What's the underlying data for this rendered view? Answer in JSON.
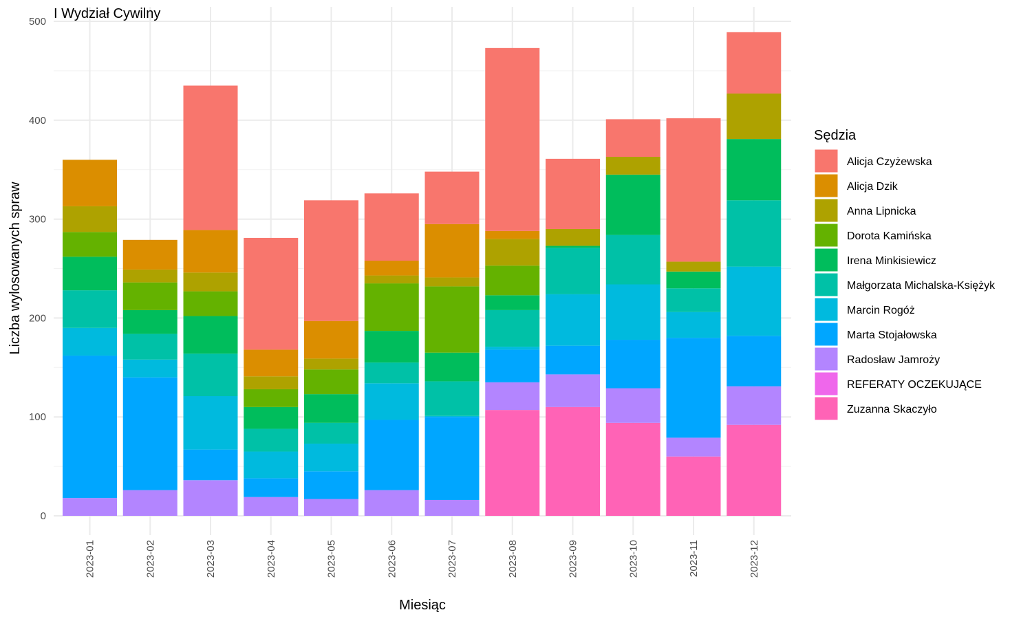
{
  "chart_data": {
    "type": "bar",
    "stacked": true,
    "title": "I Wydział Cywilny",
    "xlabel": "Miesiąc",
    "ylabel": "Liczba wylosowanych spraw",
    "ylim": [
      0,
      500
    ],
    "y_ticks": [
      0,
      100,
      200,
      300,
      400,
      500
    ],
    "grid": true,
    "legend_title": "Sędzia",
    "legend_position": "right",
    "categories": [
      "2023-01",
      "2023-02",
      "2023-03",
      "2023-04",
      "2023-05",
      "2023-06",
      "2023-07",
      "2023-08",
      "2023-09",
      "2023-10",
      "2023-11",
      "2023-12"
    ],
    "series": [
      {
        "name": "Alicja Czyżewska",
        "color": "#F8766D",
        "values": [
          0,
          0,
          146,
          113,
          122,
          68,
          53,
          185,
          71,
          38,
          145,
          62
        ]
      },
      {
        "name": "Alicja Dzik",
        "color": "#DB8E00",
        "values": [
          47,
          30,
          43,
          27,
          38,
          15,
          54,
          8,
          0,
          0,
          0,
          0
        ]
      },
      {
        "name": "Anna Lipnicka",
        "color": "#AEA200",
        "values": [
          26,
          13,
          19,
          13,
          11,
          8,
          9,
          27,
          17,
          18,
          10,
          46
        ]
      },
      {
        "name": "Dorota Kamińska",
        "color": "#64B200",
        "values": [
          25,
          28,
          25,
          18,
          25,
          48,
          67,
          30,
          0,
          0,
          0,
          0
        ]
      },
      {
        "name": "Irena Minkisiewicz",
        "color": "#00BD5C",
        "values": [
          34,
          24,
          38,
          22,
          29,
          32,
          29,
          15,
          2,
          61,
          17,
          62
        ]
      },
      {
        "name": "Małgorzata Michalska-Księżyk",
        "color": "#00C1A7",
        "values": [
          38,
          26,
          43,
          23,
          21,
          21,
          35,
          37,
          47,
          50,
          24,
          67
        ]
      },
      {
        "name": "Marcin Rogóż",
        "color": "#00BADE",
        "values": [
          28,
          18,
          54,
          27,
          28,
          37,
          1,
          3,
          52,
          56,
          26,
          70
        ]
      },
      {
        "name": "Marta Stojałowska",
        "color": "#00A6FF",
        "values": [
          144,
          114,
          31,
          19,
          28,
          71,
          84,
          33,
          29,
          49,
          101,
          51
        ]
      },
      {
        "name": "Radosław Jamroży",
        "color": "#B385FF",
        "values": [
          18,
          26,
          36,
          19,
          17,
          26,
          16,
          28,
          33,
          35,
          19,
          39
        ]
      },
      {
        "name": "REFERATY OCZEKUJĄCE",
        "color": "#EF67EB",
        "values": [
          0,
          0,
          0,
          0,
          0,
          0,
          0,
          0,
          0,
          0,
          0,
          0
        ]
      },
      {
        "name": "Zuzanna Skaczyło",
        "color": "#FF63B6",
        "values": [
          0,
          0,
          0,
          0,
          0,
          0,
          0,
          107,
          110,
          94,
          60,
          92
        ]
      }
    ]
  }
}
